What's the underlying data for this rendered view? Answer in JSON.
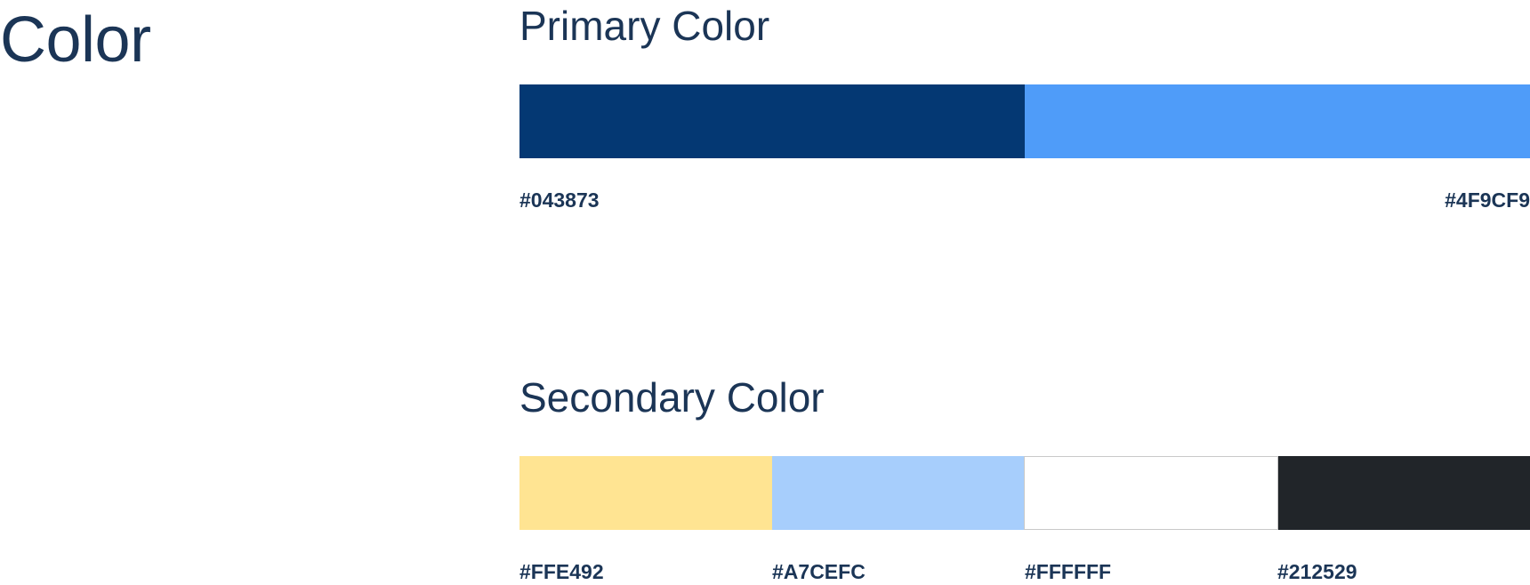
{
  "page": {
    "title": "Color"
  },
  "primary": {
    "title": "Primary Color",
    "swatches": [
      {
        "hex": "#043873",
        "label": "#043873"
      },
      {
        "hex": "#4F9CF9",
        "label": "#4F9CF9"
      }
    ]
  },
  "secondary": {
    "title": "Secondary Color",
    "swatches": [
      {
        "hex": "#FFE492",
        "label": "#FFE492"
      },
      {
        "hex": "#A7CEFC",
        "label": "#A7CEFC"
      },
      {
        "hex": "#FFFFFF",
        "label": "#FFFFFF"
      },
      {
        "hex": "#212529",
        "label": "#212529"
      }
    ]
  }
}
